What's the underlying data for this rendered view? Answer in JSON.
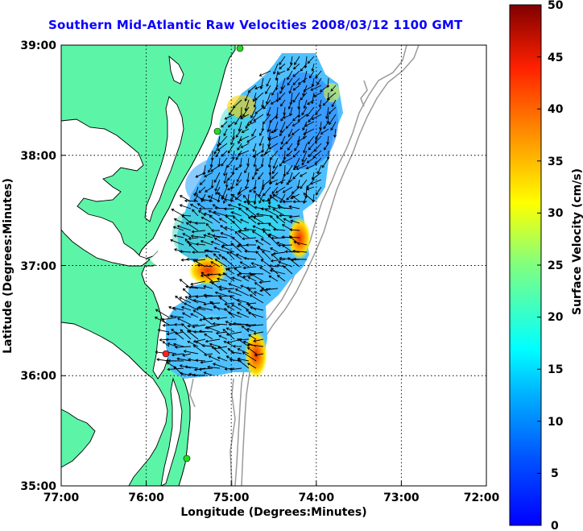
{
  "title": "Southern Mid-Atlantic Raw Velocities 2008/03/12 1100 GMT",
  "axes": {
    "xlabel": "Longitude (Degrees:Minutes)",
    "ylabel": "Latitude (Degrees:Minutes)",
    "x_ticks": [
      "77:00",
      "76:00",
      "75:00",
      "74:00",
      "73:00",
      "72:00"
    ],
    "y_ticks": [
      "39:00",
      "38:00",
      "37:00",
      "36:00",
      "35:00"
    ]
  },
  "colorbar": {
    "label": "Surface Velocity (cm/s)",
    "ticks": [
      "50",
      "45",
      "40",
      "35",
      "30",
      "25",
      "20",
      "15",
      "10",
      "5",
      "0"
    ],
    "min": 0,
    "max": 50,
    "units": "cm/s"
  },
  "chart_data": {
    "type": "heatmap",
    "title": "Southern Mid-Atlantic Raw Velocities 2008/03/12 1100 GMT",
    "xlabel": "Longitude (Degrees:Minutes)",
    "ylabel": "Latitude (Degrees:Minutes)",
    "xlim": [
      -77,
      -72
    ],
    "ylim": [
      35,
      39
    ],
    "colorbar_range": [
      0,
      50
    ],
    "hotspots": [
      {
        "lon": -75.35,
        "lat": 36.95,
        "speed": 40
      },
      {
        "lon": -74.25,
        "lat": 37.2,
        "speed": 42
      },
      {
        "lon": -74.7,
        "lat": 36.25,
        "speed": 42
      },
      {
        "lon": -74.9,
        "lat": 38.5,
        "speed": 32
      }
    ],
    "stations": [
      {
        "lon": -75.1,
        "lat": 38.97,
        "color": "green"
      },
      {
        "lon": -75.15,
        "lat": 38.22,
        "color": "green"
      },
      {
        "lon": -75.78,
        "lat": 36.18,
        "color": "red"
      },
      {
        "lon": -75.5,
        "lat": 35.27,
        "color": "green"
      }
    ],
    "colors": {
      "land": "#5cf5a8",
      "title": "#0a00ff",
      "arrows": "#000000",
      "bathymetry": "#999999"
    }
  }
}
